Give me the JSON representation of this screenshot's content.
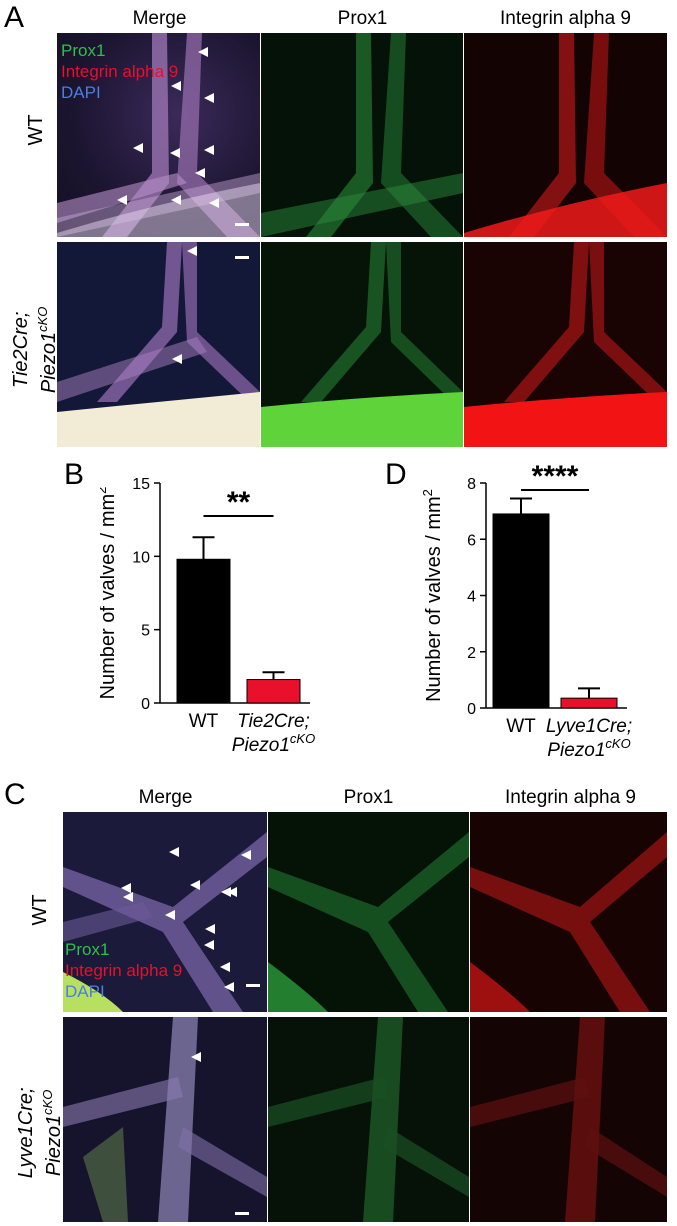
{
  "panel_labels": {
    "A": "A",
    "B": "B",
    "C": "C",
    "D": "D"
  },
  "columns": {
    "merge": "Merge",
    "prox1": "Prox1",
    "integrin": "Integrin alpha 9"
  },
  "rows_A": {
    "wt": "WT",
    "ko_line1": "Tie2Cre;",
    "ko_line2": "Piezo1",
    "ko_sup": "cKO"
  },
  "rows_C": {
    "wt": "WT",
    "ko_line1": "Lyve1Cre;",
    "ko_line2": "Piezo1",
    "ko_sup": "cKO"
  },
  "legend": {
    "prox1": "Prox1",
    "integrin": "Integrin alpha 9",
    "dapi": "DAPI"
  },
  "colors": {
    "prox1": "#2fbf4a",
    "integrin": "#e8102a",
    "dapi": "#4a7fe0",
    "wt_bar": "#000000",
    "ko_bar": "#e8102a"
  },
  "chart_data": [
    {
      "type": "bar",
      "panel": "B",
      "ylabel": "Number of valves / mm",
      "ylabel_sup": "2",
      "ylim": [
        0,
        15
      ],
      "yticks": [
        "0",
        "5",
        "10",
        "15"
      ],
      "categories": [
        "WT",
        "Tie2Cre; Piezo1cKO"
      ],
      "cat_wt": "WT",
      "cat_ko_1": "Tie2Cre;",
      "cat_ko_2": "Piezo1",
      "cat_ko_sup": "cKO",
      "values": [
        9.8,
        1.6
      ],
      "errors": [
        1.5,
        0.5
      ],
      "significance": "**"
    },
    {
      "type": "bar",
      "panel": "D",
      "ylabel": "Number of valves / mm",
      "ylabel_sup": "2",
      "ylim": [
        0,
        8
      ],
      "yticks": [
        "0",
        "2",
        "4",
        "6",
        "8"
      ],
      "categories": [
        "WT",
        "Lyve1Cre; Piezo1cKO"
      ],
      "cat_wt": "WT",
      "cat_ko_1": "Lyve1Cre;",
      "cat_ko_2": "Piezo1",
      "cat_ko_sup": "cKO",
      "values": [
        6.9,
        0.35
      ],
      "errors": [
        0.55,
        0.35
      ],
      "significance": "****"
    }
  ]
}
